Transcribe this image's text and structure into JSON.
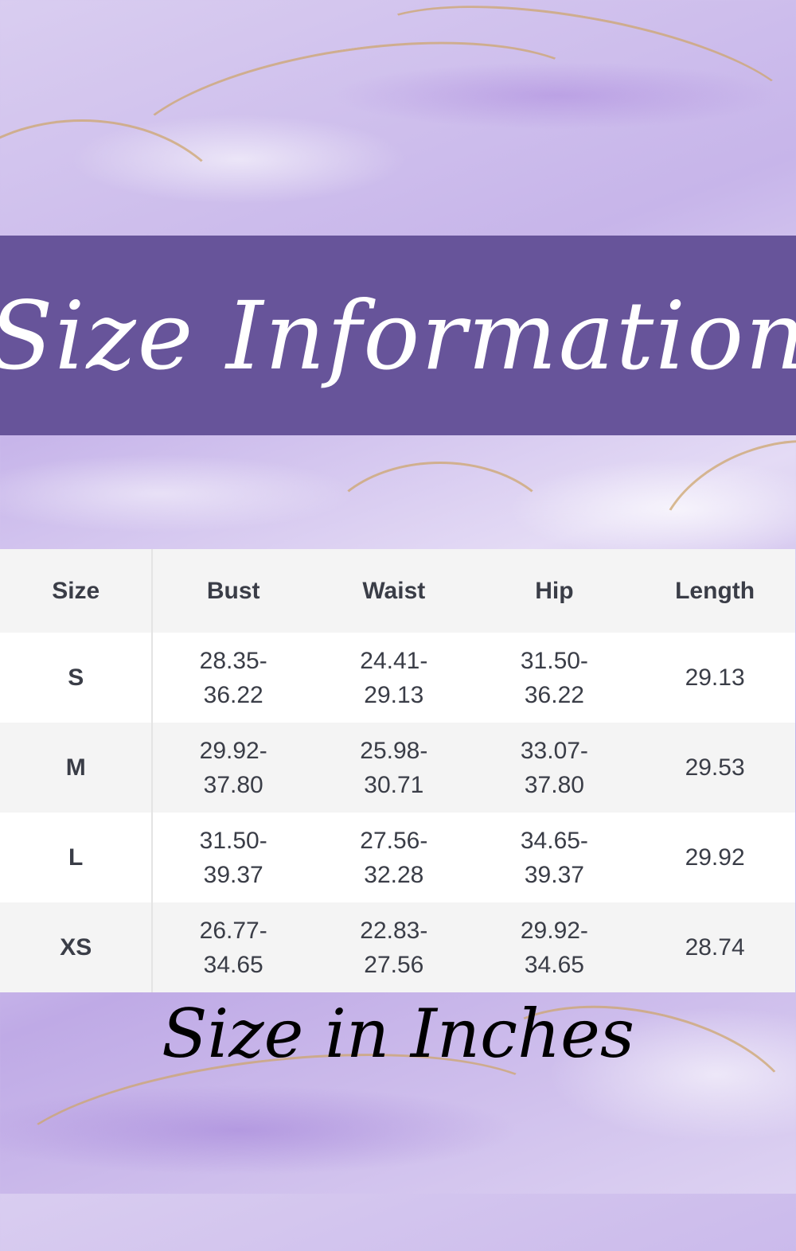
{
  "title": "Size Information",
  "table": {
    "headers": [
      "Size",
      "Bust",
      "Waist",
      "Hip",
      "Length"
    ],
    "rows": [
      {
        "size": "S",
        "bust": [
          "28.35-",
          "36.22"
        ],
        "waist": [
          "24.41-",
          "29.13"
        ],
        "hip": [
          "31.50-",
          "36.22"
        ],
        "length": "29.13"
      },
      {
        "size": "M",
        "bust": [
          "29.92-",
          "37.80"
        ],
        "waist": [
          "25.98-",
          "30.71"
        ],
        "hip": [
          "33.07-",
          "37.80"
        ],
        "length": "29.53"
      },
      {
        "size": "L",
        "bust": [
          "31.50-",
          "39.37"
        ],
        "waist": [
          "27.56-",
          "32.28"
        ],
        "hip": [
          "34.65-",
          "39.37"
        ],
        "length": "29.92"
      },
      {
        "size": "XS",
        "bust": [
          "26.77-",
          "34.65"
        ],
        "waist": [
          "22.83-",
          "27.56"
        ],
        "hip": [
          "29.92-",
          "34.65"
        ],
        "length": "28.74"
      }
    ]
  },
  "footer": "Size in Inches",
  "colors": {
    "banner": "#67549a",
    "text": "#3a3d47",
    "background": "#cbbbeb",
    "gold": "#cda56e"
  }
}
